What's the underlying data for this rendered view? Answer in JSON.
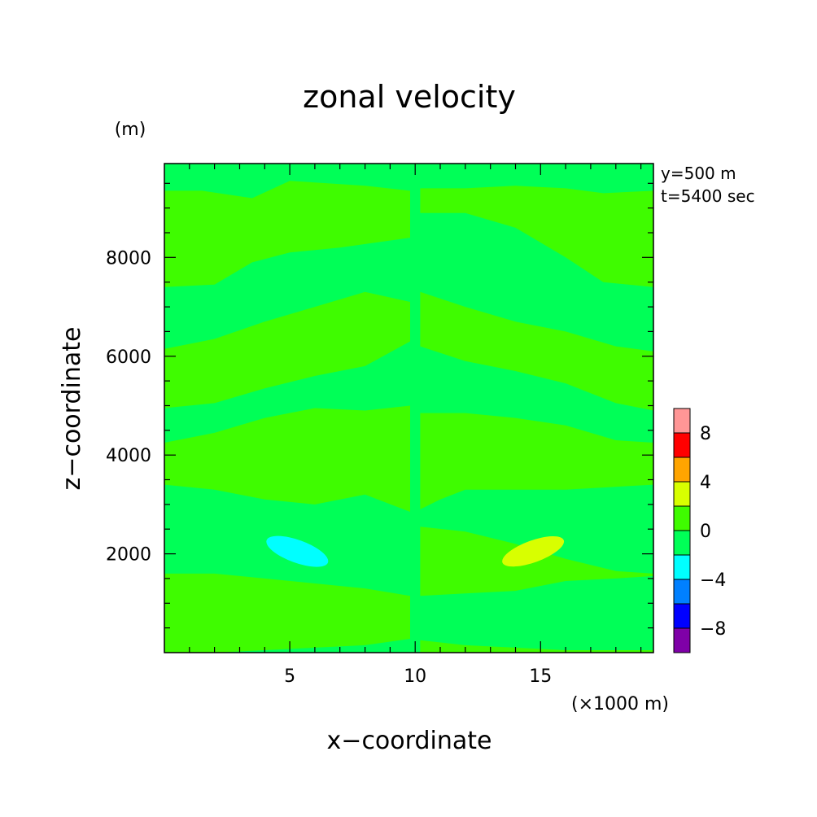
{
  "chart_data": {
    "type": "heatmap",
    "title": "zonal velocity",
    "xlabel": "x−coordinate",
    "ylabel": "z−coordinate",
    "x_unit_label": "(×1000 m)",
    "y_unit_label": "(m)",
    "annotations": [
      "y=500 m",
      "t=5400 sec"
    ],
    "xlim": [
      0,
      19.5
    ],
    "ylim": [
      0,
      9900
    ],
    "x_ticks": [
      5,
      10,
      15
    ],
    "y_ticks": [
      2000,
      4000,
      6000,
      8000
    ],
    "x_tick_labels": [
      "5",
      "10",
      "15"
    ],
    "y_tick_labels": [
      "2000",
      "4000",
      "6000",
      "8000"
    ],
    "colorbar": {
      "levels": [
        -10,
        -8,
        -6,
        -4,
        -2,
        0,
        2,
        4,
        6,
        8,
        10
      ],
      "colors": [
        "#7f00a8",
        "#0000ff",
        "#0080ff",
        "#00ffff",
        "#00ff57",
        "#3ffc00",
        "#d8ff00",
        "#ffa500",
        "#ff0000",
        "#ff9696"
      ],
      "tick_values": [
        -8,
        -4,
        0,
        4,
        8
      ],
      "tick_labels": [
        "−8",
        "−4",
        "0",
        "4",
        "8"
      ]
    },
    "background_color": "#00ff57",
    "bands": [
      {
        "value_range": [
          0,
          2
        ],
        "color": "#3ffc00",
        "left_upper": [
          [
            0,
            9350
          ],
          [
            1.5,
            9350
          ],
          [
            3.5,
            9200
          ],
          [
            5,
            9550
          ],
          [
            8,
            9450
          ],
          [
            9.8,
            9350
          ]
        ],
        "left_lower": [
          [
            0,
            7400
          ],
          [
            2,
            7450
          ],
          [
            3.5,
            7900
          ],
          [
            5,
            8100
          ],
          [
            7,
            8200
          ],
          [
            9.8,
            8400
          ]
        ],
        "right_upper": [
          [
            10.2,
            9400
          ],
          [
            12,
            9400
          ],
          [
            14,
            9450
          ],
          [
            16,
            9400
          ],
          [
            17.5,
            9300
          ],
          [
            19.5,
            9350
          ]
        ],
        "right_lower": [
          [
            10.2,
            8900
          ],
          [
            12,
            8900
          ],
          [
            14,
            8600
          ],
          [
            16,
            8000
          ],
          [
            17.5,
            7500
          ],
          [
            19.5,
            7400
          ]
        ]
      },
      {
        "value_range": [
          0,
          2
        ],
        "color": "#3ffc00",
        "left_upper": [
          [
            0,
            6150
          ],
          [
            2,
            6350
          ],
          [
            4,
            6700
          ],
          [
            6,
            7000
          ],
          [
            8,
            7300
          ],
          [
            9.8,
            7100
          ]
        ],
        "left_lower": [
          [
            0,
            4950
          ],
          [
            2,
            5050
          ],
          [
            4,
            5350
          ],
          [
            6,
            5600
          ],
          [
            8,
            5800
          ],
          [
            9.8,
            6300
          ]
        ],
        "right_upper": [
          [
            10.2,
            7300
          ],
          [
            12,
            7000
          ],
          [
            14,
            6700
          ],
          [
            16,
            6500
          ],
          [
            18,
            6200
          ],
          [
            19.5,
            6100
          ]
        ],
        "right_lower": [
          [
            10.2,
            6200
          ],
          [
            12,
            5900
          ],
          [
            14,
            5700
          ],
          [
            16,
            5450
          ],
          [
            18,
            5050
          ],
          [
            19.5,
            4900
          ]
        ]
      },
      {
        "value_range": [
          0,
          2
        ],
        "color": "#3ffc00",
        "left_upper": [
          [
            0,
            4250
          ],
          [
            2,
            4450
          ],
          [
            4,
            4750
          ],
          [
            6,
            4950
          ],
          [
            8,
            4900
          ],
          [
            9.8,
            5000
          ]
        ],
        "left_lower": [
          [
            0,
            3400
          ],
          [
            2,
            3300
          ],
          [
            4,
            3100
          ],
          [
            6,
            3000
          ],
          [
            8,
            3200
          ],
          [
            9.8,
            2850
          ]
        ],
        "right_upper": [
          [
            10.2,
            4850
          ],
          [
            12,
            4850
          ],
          [
            14,
            4750
          ],
          [
            16,
            4600
          ],
          [
            18,
            4300
          ],
          [
            19.5,
            4250
          ]
        ],
        "right_lower": [
          [
            10.2,
            2900
          ],
          [
            11,
            3100
          ],
          [
            12,
            3300
          ],
          [
            14,
            3300
          ],
          [
            16,
            3300
          ],
          [
            19.5,
            3400
          ]
        ]
      },
      {
        "value_range": [
          0,
          2
        ],
        "color": "#3ffc00",
        "left_upper": [
          [
            0,
            1600
          ],
          [
            2,
            1600
          ],
          [
            4,
            1500
          ],
          [
            6,
            1400
          ],
          [
            8,
            1300
          ],
          [
            9.8,
            1150
          ]
        ],
        "left_lower": [
          [
            0,
            0
          ],
          [
            2,
            0
          ],
          [
            4,
            50
          ],
          [
            6,
            100
          ],
          [
            8,
            150
          ],
          [
            9.8,
            280
          ]
        ],
        "right_upper": [
          [
            10.2,
            2550
          ],
          [
            12,
            2450
          ],
          [
            14,
            2200
          ],
          [
            16,
            1900
          ],
          [
            18,
            1650
          ],
          [
            19.5,
            1600
          ]
        ],
        "right_lower": [
          [
            10.2,
            1150
          ],
          [
            12,
            1200
          ],
          [
            14,
            1250
          ],
          [
            16,
            1450
          ],
          [
            18,
            1500
          ],
          [
            19.5,
            1550
          ]
        ]
      },
      {
        "value_range": [
          0,
          2
        ],
        "color": "#3ffc00",
        "left_upper": [],
        "left_lower": [],
        "right_upper": [
          [
            10.2,
            250
          ],
          [
            12,
            150
          ],
          [
            14,
            100
          ],
          [
            16,
            50
          ],
          [
            17.5,
            50
          ],
          [
            19.5,
            50
          ]
        ],
        "right_lower": [
          [
            10.2,
            0
          ],
          [
            19.5,
            0
          ]
        ]
      }
    ],
    "cells": [
      {
        "value_range": [
          -4,
          -2
        ],
        "color": "#00ffff",
        "center": [
          5.3,
          2050
        ],
        "rx": 1.3,
        "ry": 230,
        "rotate": 20
      },
      {
        "value_range": [
          2,
          4
        ],
        "color": "#d8ff00",
        "center": [
          14.7,
          2050
        ],
        "rx": 1.3,
        "ry": 220,
        "rotate": -20
      }
    ]
  }
}
